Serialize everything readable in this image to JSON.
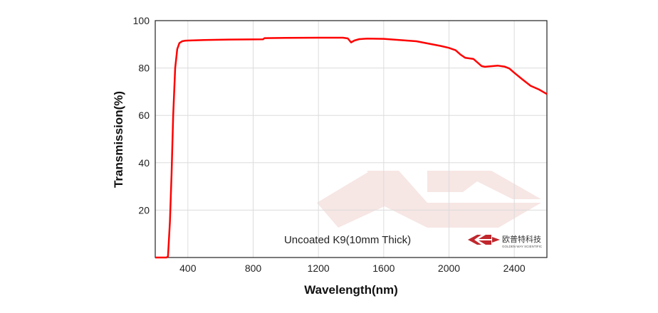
{
  "chart_data": {
    "type": "line",
    "title": "",
    "xlabel": "Wavelength(nm)",
    "ylabel": "Transmission(%)",
    "xlim": [
      200,
      2600
    ],
    "ylim": [
      0,
      100
    ],
    "xticks": [
      400,
      800,
      1200,
      1600,
      2000,
      2400
    ],
    "yticks": [
      20,
      40,
      60,
      80,
      100
    ],
    "grid": true,
    "annotation": "Uncoated K9(10mm Thick)",
    "series_color": "#ff0000",
    "series": [
      {
        "x": [
          200,
          270,
          278,
          290,
          300,
          310,
          322,
          335,
          348,
          365,
          380,
          400,
          500,
          650,
          860,
          870,
          1000,
          1200,
          1350,
          1380,
          1400,
          1420,
          1450,
          1500,
          1600,
          1800,
          1950,
          2000,
          2040,
          2070,
          2100,
          2150,
          2180,
          2200,
          2220,
          2250,
          2300,
          2340,
          2370,
          2400,
          2450,
          2500,
          2550,
          2600
        ],
        "y": [
          0,
          0,
          0.5,
          15,
          35,
          60,
          80,
          88,
          90.5,
          91.3,
          91.5,
          91.6,
          91.8,
          92,
          92.1,
          92.6,
          92.7,
          92.8,
          92.8,
          92.5,
          90.8,
          91.6,
          92.2,
          92.4,
          92.3,
          91.3,
          89.3,
          88.5,
          87.5,
          85.7,
          84.3,
          83.8,
          82,
          80.8,
          80.5,
          80.7,
          81,
          80.6,
          79.8,
          78,
          75.2,
          72.5,
          71,
          69
        ]
      }
    ]
  },
  "logo": {
    "name_cn": "欧普特科技",
    "name_en": "GOLDEN WAY SCIENTIFIC",
    "color": "#c0282d"
  }
}
